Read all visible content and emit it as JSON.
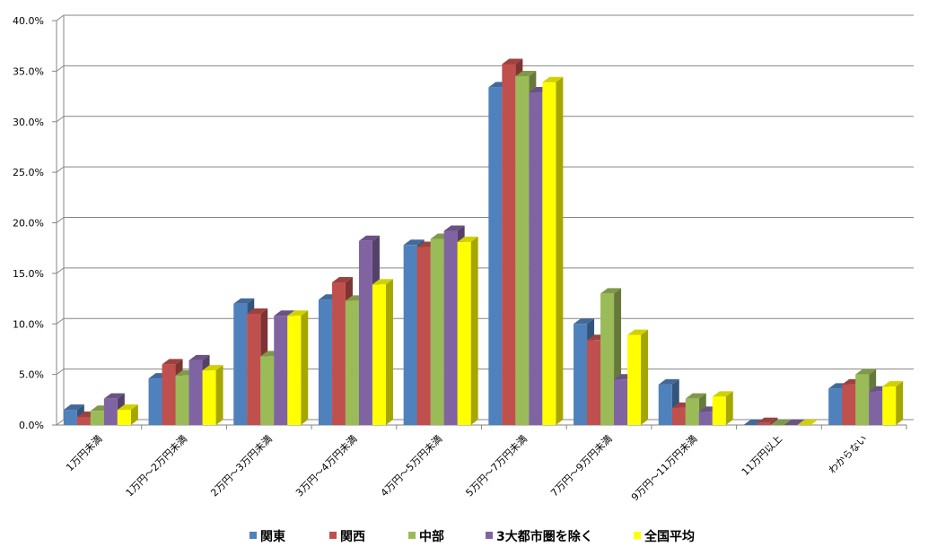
{
  "chart_data": {
    "type": "bar",
    "categories": [
      "1万円未満",
      "1万円～2万円未満",
      "2万円～3万円未満",
      "3万円～4万円未満",
      "4万円～5万円未満",
      "5万円～7万円未満",
      "7万円～9万円未満",
      "9万円～11万円未満",
      "11万円以上",
      "わからない"
    ],
    "series": [
      {
        "name": "関東",
        "values": [
          1.5,
          4.6,
          12.0,
          12.4,
          17.8,
          33.4,
          10.0,
          4.0,
          0.0,
          3.6
        ]
      },
      {
        "name": "関西",
        "values": [
          0.8,
          6.0,
          11.0,
          14.1,
          17.6,
          35.7,
          8.4,
          1.7,
          0.2,
          4.0
        ]
      },
      {
        "name": "中部",
        "values": [
          1.4,
          4.9,
          6.8,
          12.3,
          18.4,
          34.5,
          13.0,
          2.6,
          0.0,
          5.0
        ]
      },
      {
        "name": "3大都市圏を除く",
        "values": [
          2.6,
          6.4,
          10.8,
          18.2,
          19.2,
          32.9,
          4.5,
          1.3,
          0.0,
          3.3
        ]
      },
      {
        "name": "全国平均",
        "values": [
          1.5,
          5.4,
          10.8,
          13.9,
          18.1,
          33.9,
          8.9,
          2.8,
          0.0,
          3.8
        ]
      }
    ],
    "colors": [
      "#4F81BD",
      "#C0504D",
      "#9BBB59",
      "#8064A2",
      "#FFFF00"
    ],
    "ylim": [
      0,
      40
    ],
    "yticks": [
      "0.0%",
      "5.0%",
      "10.0%",
      "15.0%",
      "20.0%",
      "25.0%",
      "30.0%",
      "35.0%",
      "40.0%"
    ],
    "grid": true,
    "legend": "bottom"
  }
}
